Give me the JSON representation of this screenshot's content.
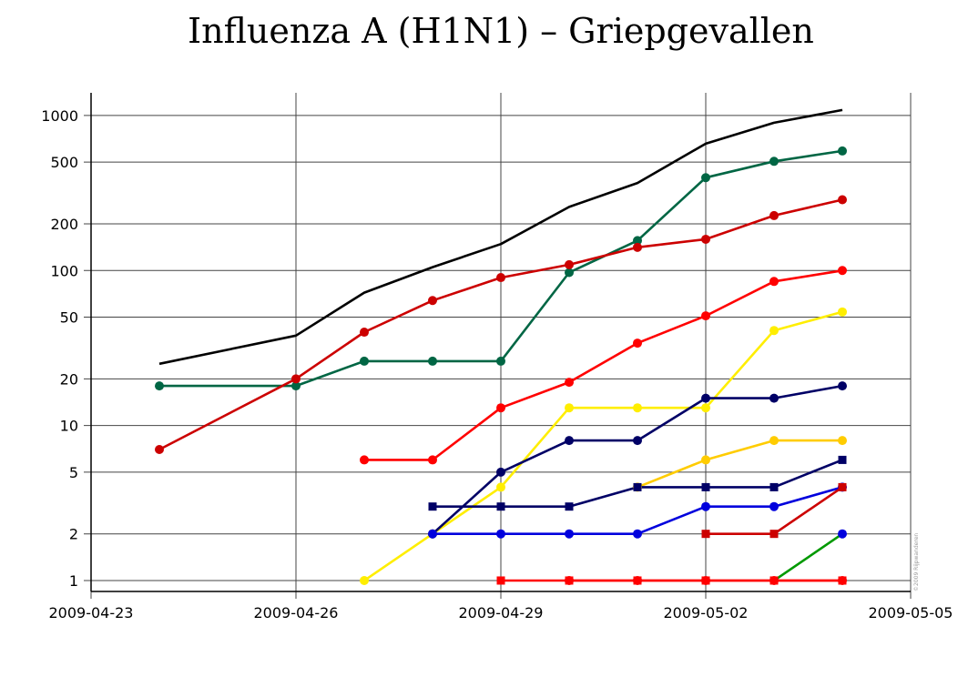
{
  "chart_data": {
    "type": "line",
    "title": "Influenza A (H1N1) – Griepgevallen",
    "credit": "©2009 Rijpwanderen",
    "xlabel": "",
    "ylabel": "",
    "y_scale": "log",
    "ylim": [
      0.85,
      1400
    ],
    "y_ticks": [
      1,
      2,
      5,
      10,
      20,
      50,
      100,
      200,
      500,
      1000
    ],
    "xlim": [
      "2009-04-23",
      "2009-05-05"
    ],
    "x_ticks": [
      "2009-04-23",
      "2009-04-26",
      "2009-04-29",
      "2009-05-02",
      "2009-05-05"
    ],
    "grid": true,
    "series": [
      {
        "color": "#000000",
        "marker": "none",
        "points": [
          [
            "2009-04-24",
            25
          ],
          [
            "2009-04-26",
            38
          ],
          [
            "2009-04-27",
            72
          ],
          [
            "2009-04-28",
            105
          ],
          [
            "2009-04-29",
            148
          ],
          [
            "2009-04-30",
            257
          ],
          [
            "2009-05-01",
            367
          ],
          [
            "2009-05-02",
            658
          ],
          [
            "2009-05-03",
            898
          ],
          [
            "2009-05-04",
            1085
          ]
        ]
      },
      {
        "color": "#006644",
        "marker": "circle",
        "points": [
          [
            "2009-04-24",
            18
          ],
          [
            "2009-04-26",
            18
          ],
          [
            "2009-04-27",
            26
          ],
          [
            "2009-04-28",
            26
          ],
          [
            "2009-04-29",
            26
          ],
          [
            "2009-04-30",
            97
          ],
          [
            "2009-05-01",
            156
          ],
          [
            "2009-05-02",
            397
          ],
          [
            "2009-05-03",
            506
          ],
          [
            "2009-05-04",
            590
          ]
        ]
      },
      {
        "color": "#cc0000",
        "marker": "circle",
        "points": [
          [
            "2009-04-24",
            7
          ],
          [
            "2009-04-26",
            20
          ],
          [
            "2009-04-27",
            40
          ],
          [
            "2009-04-28",
            64
          ],
          [
            "2009-04-29",
            90
          ],
          [
            "2009-04-30",
            109
          ],
          [
            "2009-05-01",
            141
          ],
          [
            "2009-05-02",
            159
          ],
          [
            "2009-05-03",
            226
          ],
          [
            "2009-05-04",
            286
          ]
        ]
      },
      {
        "color": "#ff0000",
        "marker": "circle",
        "points": [
          [
            "2009-04-27",
            6
          ],
          [
            "2009-04-28",
            6
          ],
          [
            "2009-04-29",
            13
          ],
          [
            "2009-04-30",
            19
          ],
          [
            "2009-05-01",
            34
          ],
          [
            "2009-05-02",
            51
          ],
          [
            "2009-05-03",
            85
          ],
          [
            "2009-05-04",
            100
          ]
        ]
      },
      {
        "color": "#ffee00",
        "marker": "circle",
        "points": [
          [
            "2009-04-27",
            1
          ],
          [
            "2009-04-28",
            2
          ],
          [
            "2009-04-29",
            4
          ],
          [
            "2009-04-30",
            13
          ],
          [
            "2009-05-01",
            13
          ],
          [
            "2009-05-02",
            13
          ],
          [
            "2009-05-03",
            41
          ],
          [
            "2009-05-04",
            54
          ]
        ]
      },
      {
        "color": "#000066",
        "marker": "circle",
        "points": [
          [
            "2009-04-28",
            2
          ],
          [
            "2009-04-29",
            5
          ],
          [
            "2009-04-30",
            8
          ],
          [
            "2009-05-01",
            8
          ],
          [
            "2009-05-02",
            15
          ],
          [
            "2009-05-03",
            15
          ],
          [
            "2009-05-04",
            18
          ]
        ]
      },
      {
        "color": "#ffcc00",
        "marker": "circle",
        "points": [
          [
            "2009-05-01",
            4
          ],
          [
            "2009-05-02",
            6
          ],
          [
            "2009-05-03",
            8
          ],
          [
            "2009-05-04",
            8
          ]
        ]
      },
      {
        "color": "#000066",
        "marker": "square",
        "points": [
          [
            "2009-04-28",
            3
          ],
          [
            "2009-04-29",
            3
          ],
          [
            "2009-04-30",
            3
          ],
          [
            "2009-05-01",
            4
          ],
          [
            "2009-05-02",
            4
          ],
          [
            "2009-05-03",
            4
          ],
          [
            "2009-05-04",
            6
          ]
        ]
      },
      {
        "color": "#0000dd",
        "marker": "circle",
        "points": [
          [
            "2009-04-28",
            2
          ],
          [
            "2009-04-29",
            2
          ],
          [
            "2009-04-30",
            2
          ],
          [
            "2009-05-01",
            2
          ],
          [
            "2009-05-02",
            3
          ],
          [
            "2009-05-03",
            3
          ],
          [
            "2009-05-04",
            4
          ]
        ]
      },
      {
        "color": "#cc0000",
        "marker": "square",
        "points": [
          [
            "2009-05-02",
            2
          ],
          [
            "2009-05-03",
            2
          ],
          [
            "2009-05-04",
            4
          ]
        ]
      },
      {
        "color": "#009900",
        "marker": "none",
        "points": [
          [
            "2009-05-03",
            1
          ],
          [
            "2009-05-04",
            2
          ]
        ]
      },
      {
        "color": "#ff0000",
        "marker": "square",
        "points": [
          [
            "2009-04-29",
            1
          ],
          [
            "2009-04-30",
            1
          ],
          [
            "2009-05-01",
            1
          ],
          [
            "2009-05-02",
            1
          ],
          [
            "2009-05-03",
            1
          ],
          [
            "2009-05-04",
            1
          ]
        ]
      },
      {
        "color": "#ff0000",
        "marker": "circle",
        "points": [
          [
            "2009-04-30",
            1
          ],
          [
            "2009-05-01",
            1
          ],
          [
            "2009-05-02",
            1
          ],
          [
            "2009-05-03",
            1
          ],
          [
            "2009-05-04",
            1
          ]
        ]
      }
    ],
    "extra_markers": [
      {
        "color": "#0000dd",
        "marker": "circle",
        "points": [
          [
            "2009-05-04",
            2
          ]
        ]
      }
    ]
  }
}
